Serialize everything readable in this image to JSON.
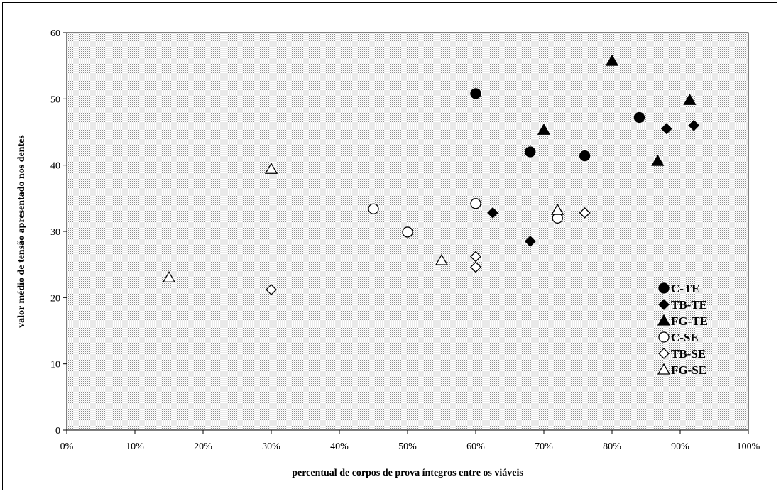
{
  "chart_data": {
    "type": "scatter",
    "xlabel": "percentual de corpos de prova íntegros entre os viáveis",
    "ylabel": "valor médio de tensão apresentado nos dentes",
    "xlim": [
      0,
      100
    ],
    "ylim": [
      0,
      60
    ],
    "x_ticks": [
      "0%",
      "10%",
      "20%",
      "30%",
      "40%",
      "50%",
      "60%",
      "70%",
      "80%",
      "90%",
      "100%"
    ],
    "y_ticks": [
      "0",
      "10",
      "20",
      "30",
      "40",
      "50",
      "60"
    ],
    "grid": false,
    "plot_background": "stippled grey",
    "legend_position": "right",
    "series": [
      {
        "name": "C-TE",
        "marker": "circle",
        "filled": true,
        "points": [
          [
            60,
            50.8
          ],
          [
            68,
            42.0
          ],
          [
            76,
            41.4
          ],
          [
            84,
            47.2
          ]
        ]
      },
      {
        "name": "TB-TE",
        "marker": "diamond",
        "filled": true,
        "points": [
          [
            62.5,
            32.8
          ],
          [
            68,
            28.5
          ],
          [
            88,
            45.5
          ],
          [
            92,
            46.0
          ]
        ]
      },
      {
        "name": "FG-TE",
        "marker": "triangle",
        "filled": true,
        "points": [
          [
            70,
            45.3
          ],
          [
            80,
            55.7
          ],
          [
            86.7,
            40.6
          ],
          [
            91.4,
            49.8
          ]
        ]
      },
      {
        "name": "C-SE",
        "marker": "circle",
        "filled": false,
        "points": [
          [
            45,
            33.4
          ],
          [
            50,
            29.9
          ],
          [
            60,
            34.2
          ],
          [
            72,
            32.0
          ]
        ]
      },
      {
        "name": "TB-SE",
        "marker": "diamond",
        "filled": false,
        "points": [
          [
            30,
            21.2
          ],
          [
            60,
            26.2
          ],
          [
            60,
            24.6
          ],
          [
            76,
            32.8
          ]
        ]
      },
      {
        "name": "FG-SE",
        "marker": "triangle",
        "filled": false,
        "points": [
          [
            15,
            23.0
          ],
          [
            30,
            39.4
          ],
          [
            55,
            25.6
          ],
          [
            72,
            33.2
          ]
        ]
      }
    ]
  },
  "colors": {
    "marker": "#000000",
    "hollow_fill": "#ffffff",
    "plot_dots": "#8c8c8c",
    "plot_base": "#ffffff"
  }
}
